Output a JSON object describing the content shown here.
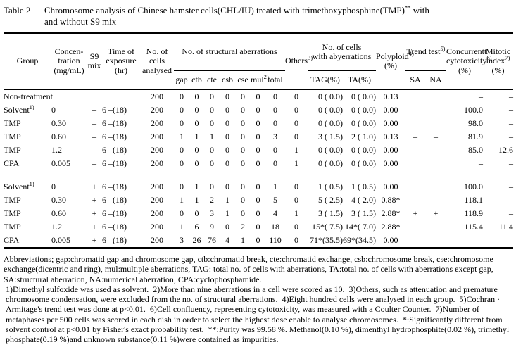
{
  "title": {
    "label": "Table 2",
    "caption": "Chromosome analysis of Chinese hamster cells(CHL/IU) treated with trimethoxyphosphine(TMP)",
    "caption_sup": "**",
    "caption_tail": " with\nand without S9 mix"
  },
  "header": {
    "group": "Group",
    "concentration": "Concen-\ntration\n(mg/mL)",
    "s9": "S9\nmix",
    "time": "Time of\nexposure\n(hr)",
    "cells": "No. of\ncells\nanalysed",
    "structural": "No. of structural aberrations",
    "sub_gap": "gap",
    "sub_ctb": "ctb",
    "sub_cte": "cte",
    "sub_csb": "csb",
    "sub_cse": "cse",
    "sub_mul": {
      "text": "mul",
      "sup": "2)"
    },
    "sub_total": "total",
    "others": {
      "text": "Others",
      "sup": "3)"
    },
    "aberr": "No. of cells\nwith abyerrations",
    "sub_tag": "TAG(%)",
    "sub_ta": "TA(%)",
    "polyploid": {
      "text": "Polyploid",
      "sup": "4)",
      "unit": "(%)"
    },
    "trend": {
      "text": "Trend test",
      "sup": "5)"
    },
    "sub_sa": "SA",
    "sub_na": "NA",
    "cytotox": {
      "line1": "Concurrentt",
      "line2": "cytotoxicity",
      "sup": "6)",
      "unit": "(%)"
    },
    "mitotic": {
      "line1": "Mitotic",
      "line2": "index",
      "sup": "7)",
      "unit": "(%)"
    }
  },
  "table": {
    "rows": [
      {
        "group": "Non-treatment",
        "sup": "",
        "conc": "",
        "s9": "",
        "time": "",
        "n": "200",
        "ab": [
          "0",
          "0",
          "0",
          "0",
          "0",
          "0",
          "0"
        ],
        "others": "0",
        "tag": "0 ( 0.0)",
        "ta": "0 ( 0.0)",
        "poly": "0.13",
        "sa": "",
        "na": "",
        "cyto": "–",
        "mi": "–"
      },
      {
        "group": "Solvent",
        "sup": "1)",
        "conc": "0",
        "s9": "–",
        "time": "6 –(18)",
        "n": "200",
        "ab": [
          "0",
          "0",
          "0",
          "0",
          "0",
          "0",
          "0"
        ],
        "others": "0",
        "tag": "0 ( 0.0)",
        "ta": "0 ( 0.0)",
        "poly": "0.00",
        "sa": "",
        "na": "",
        "cyto": "100.0",
        "mi": "–"
      },
      {
        "group": "TMP",
        "sup": "",
        "conc": "0.30",
        "s9": "–",
        "time": "6 –(18)",
        "n": "200",
        "ab": [
          "0",
          "0",
          "0",
          "0",
          "0",
          "0",
          "0"
        ],
        "others": "0",
        "tag": "0 ( 0.0)",
        "ta": "0 ( 0.0)",
        "poly": "0.00",
        "sa": "",
        "na": "",
        "cyto": "98.0",
        "mi": "–"
      },
      {
        "group": "TMP",
        "sup": "",
        "conc": "0.60",
        "s9": "–",
        "time": "6 –(18)",
        "n": "200",
        "ab": [
          "1",
          "1",
          "1",
          "0",
          "0",
          "0",
          "3"
        ],
        "others": "0",
        "tag": "3 ( 1.5)",
        "ta": "2 ( 1.0)",
        "poly": "0.13",
        "sa": "–",
        "na": "–",
        "cyto": "81.9",
        "mi": "–"
      },
      {
        "group": "TMP",
        "sup": "",
        "conc": "1.2",
        "s9": "–",
        "time": "6 –(18)",
        "n": "200",
        "ab": [
          "0",
          "0",
          "0",
          "0",
          "0",
          "0",
          "0"
        ],
        "others": "1",
        "tag": "0 ( 0.0)",
        "ta": "0 ( 0.0)",
        "poly": "0.00",
        "sa": "",
        "na": "",
        "cyto": "85.0",
        "mi": "12.6"
      },
      {
        "group": "CPA",
        "sup": "",
        "conc": "0.005",
        "s9": "–",
        "time": "6 –(18)",
        "n": "200",
        "ab": [
          "0",
          "0",
          "0",
          "0",
          "0",
          "0",
          "0"
        ],
        "others": "1",
        "tag": "0 ( 0.0)",
        "ta": "0 ( 0.0)",
        "poly": "0.00",
        "sa": "",
        "na": "",
        "cyto": "–",
        "mi": "–"
      },
      {
        "spacer": true
      },
      {
        "group": "Solvent",
        "sup": "1)",
        "conc": "0",
        "s9": "+",
        "time": "6 –(18)",
        "n": "200",
        "ab": [
          "0",
          "1",
          "0",
          "0",
          "0",
          "0",
          "1"
        ],
        "others": "0",
        "tag": "1 ( 0.5)",
        "ta": "1 ( 0.5)",
        "poly": "0.00",
        "sa": "",
        "na": "",
        "cyto": "100.0",
        "mi": "–"
      },
      {
        "group": "TMP",
        "sup": "",
        "conc": "0.30",
        "s9": "+",
        "time": "6 –(18)",
        "n": "200",
        "ab": [
          "1",
          "1",
          "2",
          "1",
          "0",
          "0",
          "5"
        ],
        "others": "0",
        "tag": "5 ( 2.5)",
        "ta": "4 ( 2.0)",
        "poly": "0.88*",
        "sa": "",
        "na": "",
        "cyto": "118.1",
        "mi": "–"
      },
      {
        "group": "TMP",
        "sup": "",
        "conc": "0.60",
        "s9": "+",
        "time": "6 –(18)",
        "n": "200",
        "ab": [
          "0",
          "0",
          "3",
          "1",
          "0",
          "0",
          "4"
        ],
        "others": "1",
        "tag": "3 ( 1.5)",
        "ta": "3 ( 1.5)",
        "poly": "2.88*",
        "sa": "+",
        "na": "+",
        "cyto": "118.9",
        "mi": "–"
      },
      {
        "group": "TMP",
        "sup": "",
        "conc": "1.2",
        "s9": "+",
        "time": "6 –(18)",
        "n": "200",
        "ab": [
          "1",
          "6",
          "9",
          "0",
          "2",
          "0",
          "18"
        ],
        "others": "0",
        "tag": "15*( 7.5)",
        "ta": "14*( 7.0)",
        "poly": "2.88*",
        "sa": "",
        "na": "",
        "cyto": "115.4",
        "mi": "11.4"
      },
      {
        "group": "CPA",
        "sup": "",
        "conc": "0.005",
        "s9": "+",
        "time": "6 –(18)",
        "n": "200",
        "ab": [
          "3",
          "26",
          "76",
          "4",
          "1",
          "0",
          "110"
        ],
        "others": "0",
        "tag": "71*(35.5)",
        "ta": "69*(34.5)",
        "poly": "0.00",
        "sa": "",
        "na": "",
        "cyto": "–",
        "mi": "–"
      }
    ]
  },
  "footnotes": {
    "abbreviations": "Abbreviations; gap:chromatid gap and chromosome gap, ctb:chromatid break, cte:chromatid exchange, csb:chromosome break, cse:chromosome exchange(dicentric and ring), mul:multiple aberrations, TAG: total no. of cells with aberrations, TA:total no. of cells with aberrations except gap, SA:structural aberration, NA:numerical aberration, CPA:cyclophosphamide.",
    "numbered": "1)Dimethyl sulfoxide was used as solvent.  2)More than nine aberrations in a cell were scored as 10.  3)Others, such as attenuation and premature chromosome condensation, were excluded from the no. of structural aberrations.  4)Eight hundred cells were analysed in each group.  5)Cochran · Armitage's trend test was done at p<0.01.  6)Cell confluency, representing cytotoxicity, was measured with a Coulter Counter.  7)Number of metaphases per 500 cells was scored in each dish in order to select the highest dose enable to analyse chromosomes.  *:Significantly different from solvent control at p<0.01 by Fisher's exact probability test.  **:Purity was 99.58 %. Methanol(0.10 %), dimenthyl hydrophosphite(0.02 %), trimethyl phosphate(0.19 %)and unknown substance(0.11 %)were contained as impurities."
  }
}
